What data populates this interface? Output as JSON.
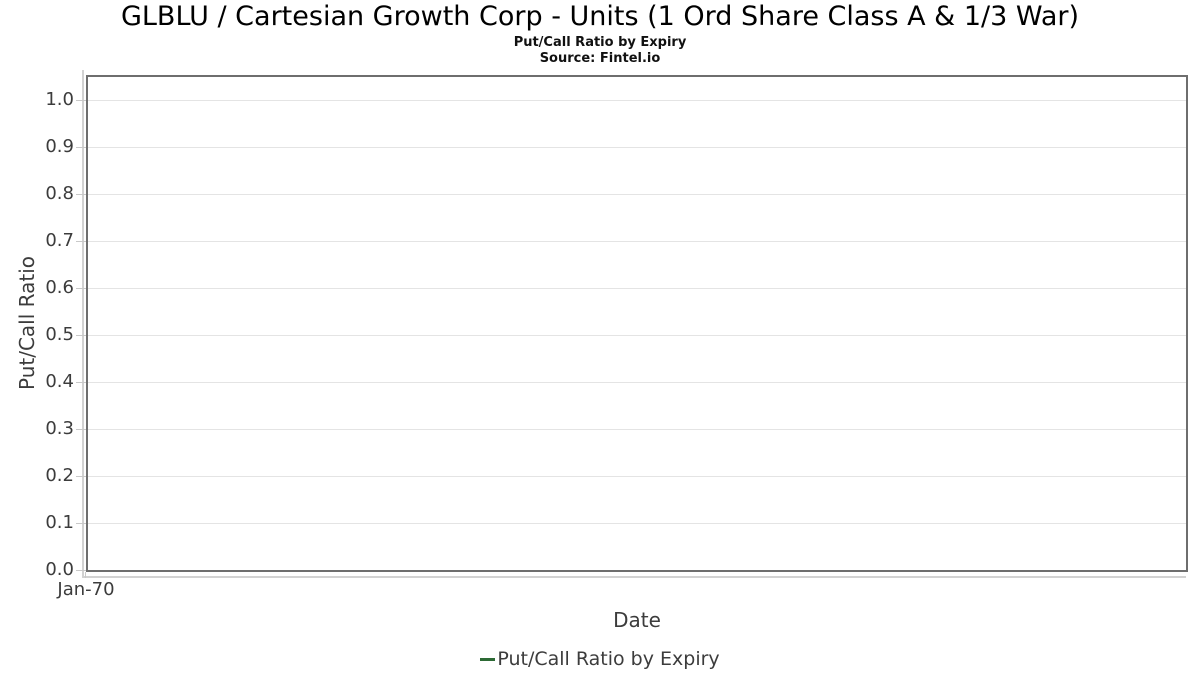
{
  "header": {
    "title": "GLBLU / Cartesian Growth Corp - Units (1 Ord Share Class A & 1/3 War)",
    "subtitle": "Put/Call Ratio by Expiry",
    "source": "Source: Fintel.io"
  },
  "chart_data": {
    "type": "line",
    "title": "GLBLU / Cartesian Growth Corp - Units (1 Ord Share Class A & 1/3 War)",
    "subtitle": "Put/Call Ratio by Expiry",
    "xlabel": "Date",
    "ylabel": "Put/Call Ratio",
    "x_ticks": [
      "Jan-70"
    ],
    "y_ticks": [
      "1.0",
      "0.9",
      "0.8",
      "0.7",
      "0.6",
      "0.5",
      "0.4",
      "0.3",
      "0.2",
      "0.1",
      "0.0"
    ],
    "ylim": [
      0,
      1.05
    ],
    "grid": "horizontal",
    "legend_position": "bottom",
    "series": [
      {
        "name": "Put/Call Ratio by Expiry",
        "color": "#2d6a35",
        "x": [],
        "values": []
      }
    ]
  },
  "legend": {
    "items": [
      {
        "label": "Put/Call Ratio by Expiry",
        "color": "#2d6a35"
      }
    ]
  },
  "colors": {
    "plot_border": "#6e6e6e",
    "gridline": "#e4e4e4",
    "axis_strip": "#d2d2d2",
    "tick_text": "#3c3c3c",
    "title_text": "#000000",
    "legend_green": "#2d6a35"
  }
}
